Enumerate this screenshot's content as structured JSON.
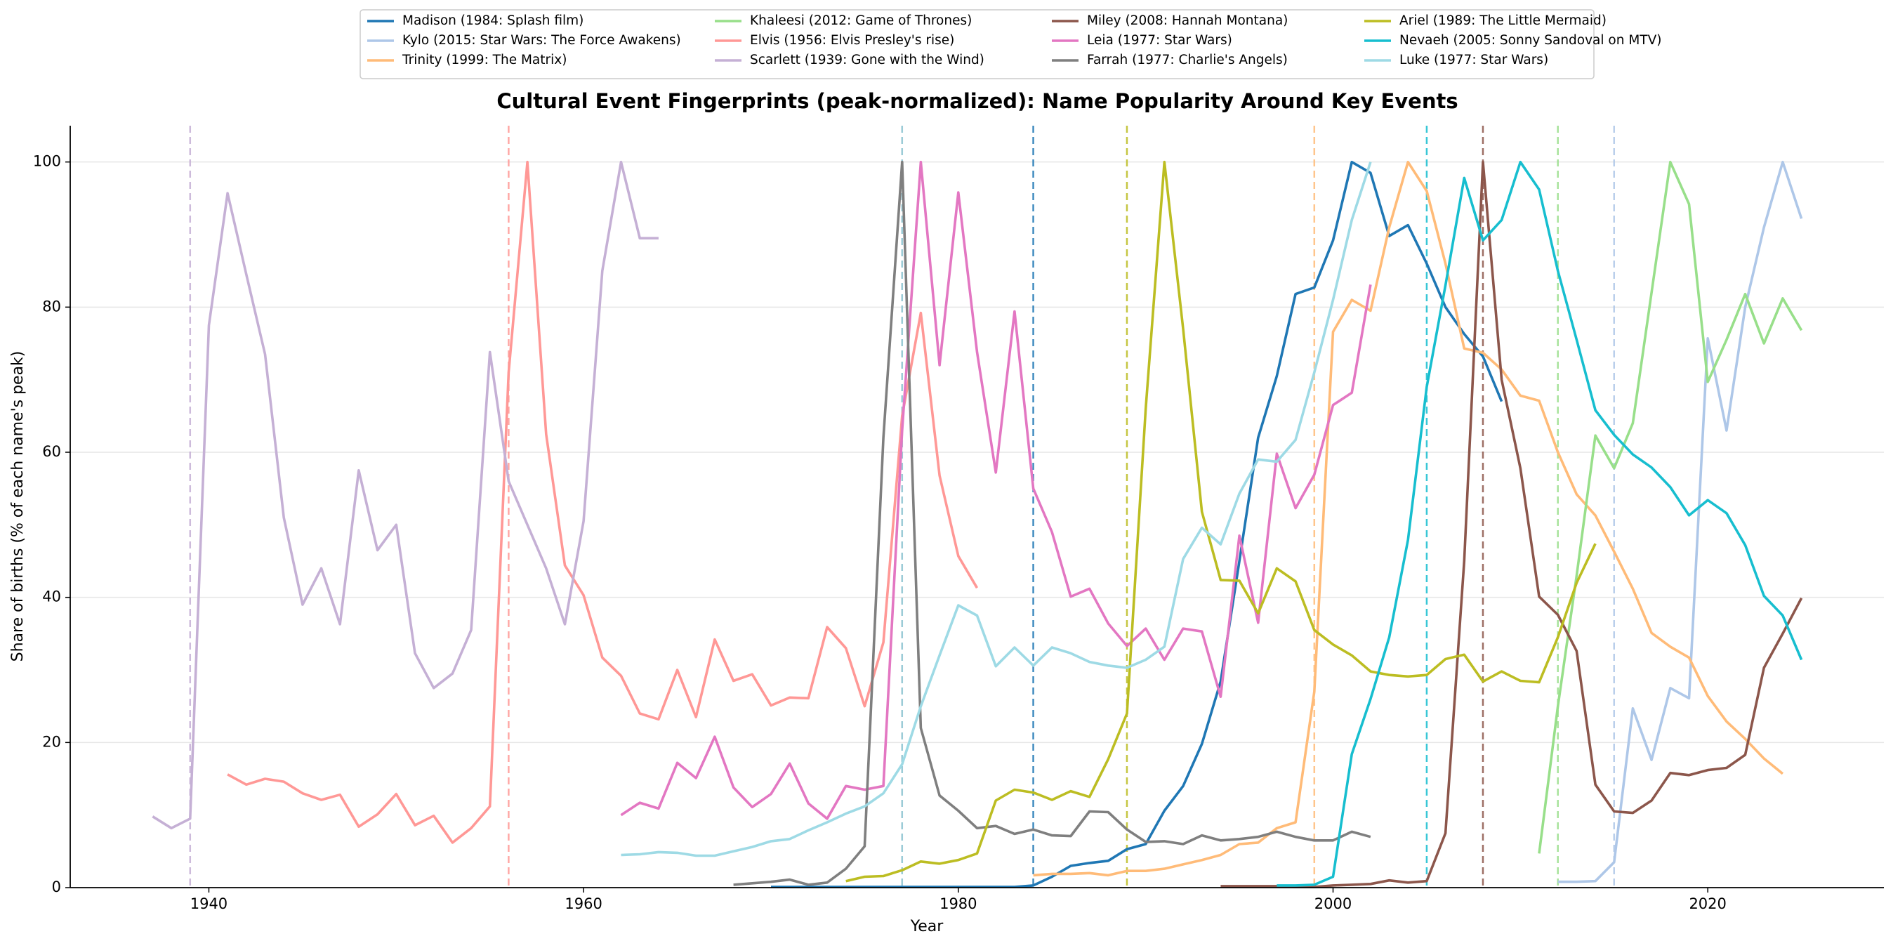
{
  "chart_data": {
    "type": "line",
    "title": "Cultural Event Fingerprints (peak-normalized): Name Popularity Around Key Events",
    "x_label": "Year",
    "y_label": "Share of births (% of each name's peak)",
    "xlim": [
      1932.6,
      2029.4
    ],
    "ylim": [
      0,
      105
    ],
    "xticks": [
      1940,
      1960,
      1980,
      2000,
      2020
    ],
    "yticks": [
      0,
      20,
      40,
      60,
      80,
      100
    ],
    "grid": true,
    "legend_position": "top-center",
    "series": [
      {
        "name": "Madison (1984: Splash film)",
        "color": "#1f77b4",
        "event_year": 1984,
        "x": [
          1970,
          1971,
          1972,
          1973,
          1974,
          1975,
          1976,
          1977,
          1978,
          1979,
          1980,
          1981,
          1982,
          1983,
          1984,
          1985,
          1986,
          1987,
          1988,
          1989,
          1990,
          1991,
          1992,
          1993,
          1994,
          1995,
          1996,
          1997,
          1998,
          1999,
          2000,
          2001,
          2002,
          2003,
          2004,
          2005,
          2006,
          2007,
          2008,
          2009
        ],
        "values": [
          0.1,
          0.1,
          0.1,
          0.1,
          0.1,
          0.1,
          0.1,
          0.1,
          0.1,
          0.1,
          0.1,
          0.1,
          0.1,
          0.1,
          0.3,
          1.5,
          3,
          3.4,
          3.7,
          5.3,
          6,
          10.6,
          14,
          19.8,
          28.4,
          45,
          62,
          70.5,
          81.8,
          82.7,
          89.2,
          100,
          98.5,
          89.8,
          91.3,
          86,
          80,
          76.3,
          73.2,
          67
        ]
      },
      {
        "name": "Kylo (2015: Star Wars: The Force Awakens)",
        "color": "#aec7e8",
        "event_year": 2015,
        "x": [
          2012,
          2013,
          2014,
          2015,
          2016,
          2017,
          2018,
          2019,
          2020,
          2021,
          2022,
          2023,
          2024,
          2025
        ],
        "values": [
          0.8,
          0.8,
          0.9,
          3.5,
          24.7,
          17.6,
          27.5,
          26.1,
          75.7,
          63,
          80,
          91,
          100,
          92.2
        ]
      },
      {
        "name": "Trinity (1999: The Matrix)",
        "color": "#ffbb78",
        "event_year": 1999,
        "x": [
          1984,
          1985,
          1986,
          1987,
          1988,
          1989,
          1990,
          1991,
          1992,
          1993,
          1994,
          1995,
          1996,
          1997,
          1998,
          1999,
          2000,
          2001,
          2002,
          2003,
          2004,
          2005,
          2006,
          2007,
          2008,
          2009,
          2010,
          2011,
          2012,
          2013,
          2014,
          2015,
          2016,
          2017,
          2018,
          2019,
          2020,
          2021,
          2022,
          2023,
          2024
        ],
        "values": [
          1.7,
          1.9,
          1.9,
          2,
          1.7,
          2.3,
          2.3,
          2.6,
          3.2,
          3.8,
          4.5,
          6,
          6.2,
          8.2,
          9,
          27,
          76.6,
          81,
          79.5,
          91,
          100,
          96,
          86,
          74.3,
          73.7,
          71.4,
          67.8,
          67.1,
          60,
          54.2,
          51.3,
          46.3,
          41.2,
          35.1,
          33.2,
          31.7,
          26.4,
          22.9,
          20.5,
          17.8,
          15.7
        ]
      },
      {
        "name": "Khaleesi (2012: Game of Thrones)",
        "color": "#98df8a",
        "event_year": 2012,
        "x": [
          2011,
          2012,
          2013,
          2014,
          2015,
          2016,
          2017,
          2018,
          2019,
          2020,
          2021,
          2022,
          2023,
          2024,
          2025
        ],
        "values": [
          4.7,
          25,
          43,
          62.3,
          57.8,
          64,
          82,
          100,
          94.2,
          69.7,
          75.5,
          81.8,
          75,
          81.2,
          76.8
        ]
      },
      {
        "name": "Elvis (1956: Elvis Presley's rise)",
        "color": "#ff9896",
        "event_year": 1956,
        "x": [
          1941,
          1942,
          1943,
          1944,
          1945,
          1946,
          1947,
          1948,
          1949,
          1950,
          1951,
          1952,
          1953,
          1954,
          1955,
          1956,
          1957,
          1958,
          1959,
          1960,
          1961,
          1962,
          1963,
          1964,
          1965,
          1966,
          1967,
          1968,
          1969,
          1970,
          1971,
          1972,
          1973,
          1974,
          1975,
          1976,
          1977,
          1978,
          1979,
          1980,
          1981
        ],
        "values": [
          15.6,
          14.2,
          15,
          14.6,
          13,
          12.1,
          12.8,
          8.4,
          10.1,
          12.9,
          8.6,
          9.9,
          6.2,
          8.2,
          11.2,
          71,
          100,
          62.5,
          44.4,
          40.3,
          31.7,
          29.2,
          24,
          23.2,
          30,
          23.5,
          34.2,
          28.5,
          29.4,
          25.1,
          26.2,
          26.1,
          35.9,
          33,
          25,
          33.8,
          65,
          79.2,
          56.8,
          45.7,
          41.3
        ]
      },
      {
        "name": "Scarlett (1939: Gone with the Wind)",
        "color": "#c5b0d5",
        "event_year": 1939,
        "x": [
          1937,
          1938,
          1939,
          1940,
          1941,
          1942,
          1943,
          1944,
          1945,
          1946,
          1947,
          1948,
          1949,
          1950,
          1951,
          1952,
          1953,
          1954,
          1955,
          1956,
          1957,
          1958,
          1959,
          1960,
          1961,
          1962,
          1963,
          1964
        ],
        "values": [
          9.8,
          8.2,
          9.5,
          77.5,
          95.7,
          84.5,
          73.5,
          51,
          39,
          44,
          36.3,
          57.5,
          46.5,
          50,
          32.3,
          27.5,
          29.5,
          35.5,
          73.8,
          56,
          50,
          44,
          36.3,
          50.5,
          85,
          100,
          89.5,
          89.5
        ]
      },
      {
        "name": "Miley (2008: Hannah Montana)",
        "color": "#8c564b",
        "event_year": 2008,
        "x": [
          1994,
          1995,
          1996,
          1997,
          1998,
          1999,
          2000,
          2001,
          2002,
          2003,
          2004,
          2005,
          2006,
          2007,
          2008,
          2009,
          2010,
          2011,
          2012,
          2013,
          2014,
          2015,
          2016,
          2017,
          2018,
          2019,
          2020,
          2021,
          2022,
          2023,
          2024,
          2025
        ],
        "values": [
          0.2,
          0.2,
          0.2,
          0.2,
          0.1,
          0.1,
          0.3,
          0.4,
          0.5,
          1,
          0.7,
          0.9,
          7.5,
          45,
          100,
          70,
          57.8,
          40.1,
          37.6,
          32.6,
          14.2,
          10.5,
          10.3,
          12,
          15.8,
          15.5,
          16.2,
          16.5,
          18.3,
          30.3,
          35,
          39.9
        ]
      },
      {
        "name": "Leia (1977: Star Wars)",
        "color": "#e377c2",
        "event_year": 1977,
        "x": [
          1962,
          1963,
          1964,
          1965,
          1966,
          1967,
          1968,
          1969,
          1970,
          1971,
          1972,
          1973,
          1974,
          1975,
          1976,
          1977,
          1978,
          1979,
          1980,
          1981,
          1982,
          1983,
          1984,
          1985,
          1986,
          1987,
          1988,
          1989,
          1990,
          1991,
          1992,
          1993,
          1994,
          1995,
          1996,
          1997,
          1998,
          1999,
          2000,
          2001,
          2002
        ],
        "values": [
          10,
          11.7,
          10.9,
          17.2,
          15.1,
          20.8,
          13.8,
          11.1,
          12.9,
          17.1,
          11.6,
          9.5,
          14,
          13.5,
          14,
          63,
          100,
          72,
          95.8,
          73.8,
          57.2,
          79.4,
          55,
          49,
          40.1,
          41.2,
          36.4,
          33.3,
          35.7,
          31.4,
          35.7,
          35.3,
          26.3,
          48.5,
          36.5,
          59.8,
          52.3,
          56.9,
          66.5,
          68.2,
          83.1
        ]
      },
      {
        "name": "Farrah (1977: Charlie's Angels)",
        "color": "#7f7f7f",
        "event_year": 1977,
        "x": [
          1968,
          1969,
          1970,
          1971,
          1972,
          1973,
          1974,
          1975,
          1976,
          1977,
          1978,
          1979,
          1980,
          1981,
          1982,
          1983,
          1984,
          1985,
          1986,
          1987,
          1988,
          1989,
          1990,
          1991,
          1992,
          1993,
          1994,
          1995,
          1996,
          1997,
          1998,
          1999,
          2000,
          2001,
          2002
        ],
        "values": [
          0.4,
          0.6,
          0.8,
          1.1,
          0.4,
          0.7,
          2.6,
          5.7,
          62,
          100,
          22,
          12.7,
          10.6,
          8.2,
          8.5,
          7.4,
          8,
          7.2,
          7.1,
          10.5,
          10.4,
          8,
          6.3,
          6.4,
          6,
          7.2,
          6.5,
          6.7,
          7,
          7.7,
          7,
          6.5,
          6.5,
          7.7,
          7
        ]
      },
      {
        "name": "Ariel (1989: The Little Mermaid)",
        "color": "#bcbd22",
        "event_year": 1989,
        "x": [
          1974,
          1975,
          1976,
          1977,
          1978,
          1979,
          1980,
          1981,
          1982,
          1983,
          1984,
          1985,
          1986,
          1987,
          1988,
          1989,
          1990,
          1991,
          1992,
          1993,
          1994,
          1995,
          1996,
          1997,
          1998,
          1999,
          2000,
          2001,
          2002,
          2003,
          2004,
          2005,
          2006,
          2007,
          2008,
          2009,
          2010,
          2011,
          2012,
          2013,
          2014
        ],
        "values": [
          0.9,
          1.5,
          1.6,
          2.4,
          3.6,
          3.3,
          3.8,
          4.7,
          12,
          13.5,
          13.1,
          12.1,
          13.3,
          12.5,
          17.7,
          24,
          66,
          100,
          77,
          51.8,
          42.4,
          42.3,
          37.8,
          44,
          42.2,
          35.5,
          33.5,
          32,
          29.8,
          29.3,
          29.1,
          29.3,
          31.5,
          32.1,
          28.4,
          29.8,
          28.5,
          28.3,
          34.5,
          42,
          47.4
        ]
      },
      {
        "name": "Nevaeh (2005: Sonny Sandoval on MTV)",
        "color": "#17becf",
        "event_year": 2005,
        "x": [
          1997,
          1998,
          1999,
          2000,
          2001,
          2002,
          2003,
          2004,
          2005,
          2006,
          2007,
          2008,
          2009,
          2010,
          2011,
          2012,
          2013,
          2014,
          2015,
          2016,
          2017,
          2018,
          2019,
          2020,
          2021,
          2022,
          2023,
          2024,
          2025
        ],
        "values": [
          0.3,
          0.3,
          0.4,
          1.5,
          18.4,
          26,
          34.5,
          47.9,
          69,
          83,
          97.8,
          89.2,
          92,
          100,
          96.2,
          85,
          75.5,
          65.8,
          62.4,
          59.7,
          57.9,
          55.2,
          51.3,
          53.4,
          51.6,
          47.2,
          40.2,
          37.5,
          31.4
        ]
      },
      {
        "name": "Luke (1977: Star Wars)",
        "color": "#9edae5",
        "event_year": 1977,
        "x": [
          1962,
          1963,
          1964,
          1965,
          1966,
          1967,
          1968,
          1969,
          1970,
          1971,
          1972,
          1973,
          1974,
          1975,
          1976,
          1977,
          1978,
          1979,
          1980,
          1981,
          1982,
          1983,
          1984,
          1985,
          1986,
          1987,
          1988,
          1989,
          1990,
          1991,
          1992,
          1993,
          1994,
          1995,
          1996,
          1997,
          1998,
          1999,
          2000,
          2001,
          2002
        ],
        "values": [
          4.5,
          4.6,
          4.9,
          4.8,
          4.4,
          4.4,
          5,
          5.6,
          6.4,
          6.7,
          7.9,
          9,
          10.2,
          11.2,
          13,
          17,
          25,
          32,
          38.9,
          37.5,
          30.5,
          33.1,
          30.6,
          33.1,
          32.3,
          31.1,
          30.6,
          30.3,
          31.4,
          33.2,
          45.3,
          49.6,
          47.3,
          54.3,
          59,
          58.7,
          61.7,
          71,
          81,
          92,
          100
        ]
      }
    ]
  }
}
